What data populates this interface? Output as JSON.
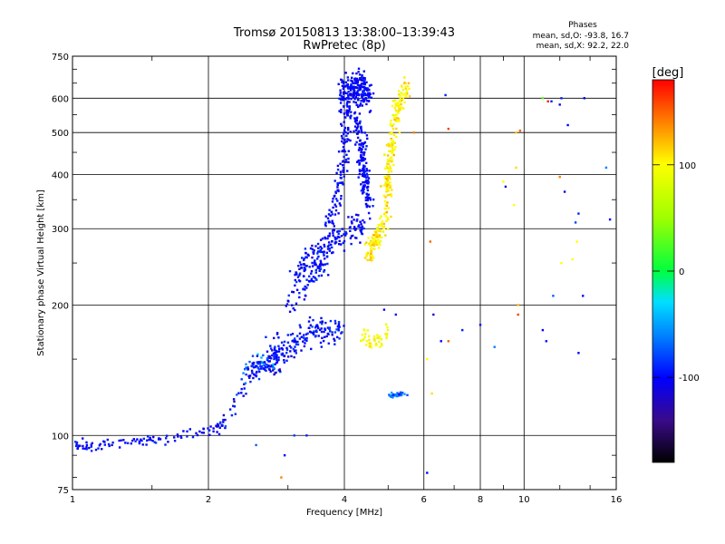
{
  "chart_data": {
    "type": "scatter",
    "title": "Tromsø 20150813 13:38:00–13:39:43",
    "subtitle": "RwPretec (8p)",
    "xlabel": "Frequency [MHz]",
    "ylabel": "Stationary phase Virtual Height [km]",
    "x_scale": "log",
    "y_scale": "log",
    "xlim": [
      1,
      16
    ],
    "ylim": [
      75,
      750
    ],
    "x_ticks": [
      1,
      2,
      4,
      6,
      8,
      10,
      16
    ],
    "y_ticks": [
      75,
      100,
      200,
      300,
      400,
      500,
      600,
      750
    ],
    "x_ticklabels": [
      "1",
      "2",
      "4",
      "6",
      "8",
      "10",
      "16"
    ],
    "y_ticklabels": [
      "75",
      "100",
      "200",
      "300",
      "400",
      "500",
      "600",
      "750"
    ],
    "grid": true,
    "stats": {
      "title": "Phases",
      "line_o": "mean, sd,O: -93.8, 16.7",
      "line_x": "mean, sd,X:  92.2, 22.0"
    },
    "colorbar": {
      "label": "[deg]",
      "range": [
        -180,
        180
      ],
      "ticks": [
        100,
        0,
        -100
      ],
      "ticklabels": [
        "100",
        "0",
        "-100"
      ]
    },
    "colors": {
      "phase_-180": "#000000",
      "phase_-140": "#3a0a8a",
      "phase_-100": "#0000ff",
      "phase_-60": "#00c8ff",
      "phase_0": "#00ff40",
      "phase_100": "#ffff00",
      "phase_140": "#ff8000",
      "phase_180": "#ff0000"
    },
    "clusters": [
      {
        "name": "o_lowE",
        "phase": -100,
        "spread": 12,
        "n": 110,
        "path": [
          [
            1.0,
            95
          ],
          [
            1.1,
            94
          ],
          [
            1.2,
            95
          ],
          [
            1.35,
            97
          ],
          [
            1.5,
            98
          ],
          [
            1.7,
            99
          ],
          [
            1.9,
            102
          ],
          [
            2.1,
            104
          ],
          [
            2.2,
            108
          ]
        ],
        "hsd": 0.02
      },
      {
        "name": "o_rise1",
        "phase": -95,
        "spread": 15,
        "n": 90,
        "path": [
          [
            2.15,
            106
          ],
          [
            2.3,
            120
          ],
          [
            2.45,
            135
          ],
          [
            2.6,
            145
          ],
          [
            2.75,
            150
          ],
          [
            2.9,
            152
          ]
        ],
        "hsd": 0.04
      },
      {
        "name": "o_F1",
        "phase": -95,
        "spread": 15,
        "n": 160,
        "path": [
          [
            2.7,
            150
          ],
          [
            3.0,
            160
          ],
          [
            3.3,
            170
          ],
          [
            3.6,
            175
          ],
          [
            3.95,
            180
          ]
        ],
        "hsd": 0.06
      },
      {
        "name": "o_F1upper",
        "phase": -98,
        "spread": 12,
        "n": 70,
        "path": [
          [
            3.0,
            200
          ],
          [
            3.3,
            220
          ],
          [
            3.5,
            240
          ],
          [
            3.7,
            255
          ]
        ],
        "hsd": 0.04
      },
      {
        "name": "o_F2lower",
        "phase": -98,
        "spread": 12,
        "n": 160,
        "path": [
          [
            3.1,
            230
          ],
          [
            3.3,
            255
          ],
          [
            3.6,
            270
          ],
          [
            3.9,
            285
          ],
          [
            4.2,
            300
          ],
          [
            4.4,
            300
          ]
        ],
        "hsd": 0.05
      },
      {
        "name": "o_F2spread",
        "phase": -100,
        "spread": 10,
        "n": 130,
        "path": [
          [
            3.7,
            300
          ],
          [
            3.85,
            350
          ],
          [
            3.95,
            400
          ],
          [
            4.0,
            460
          ],
          [
            4.05,
            520
          ],
          [
            4.1,
            580
          ]
        ],
        "hsd": 0.05
      },
      {
        "name": "o_F2top",
        "phase": -100,
        "spread": 10,
        "n": 230,
        "path": [
          [
            3.95,
            600
          ],
          [
            4.1,
            630
          ],
          [
            4.25,
            640
          ],
          [
            4.4,
            630
          ],
          [
            4.55,
            620
          ]
        ],
        "hsd": 0.06
      },
      {
        "name": "o_F2column",
        "phase": -100,
        "spread": 10,
        "n": 170,
        "path": [
          [
            4.25,
            560
          ],
          [
            4.35,
            480
          ],
          [
            4.4,
            420
          ],
          [
            4.45,
            380
          ],
          [
            4.55,
            340
          ]
        ],
        "hsd": 0.05
      },
      {
        "name": "o_scatter_mid",
        "phase": -80,
        "spread": 40,
        "n": 40,
        "path": [
          [
            2.4,
            140
          ],
          [
            2.6,
            150
          ],
          [
            2.9,
            140
          ]
        ],
        "hsd": 0.04
      },
      {
        "name": "x_F2",
        "phase": 105,
        "spread": 15,
        "n": 280,
        "path": [
          [
            4.5,
            260
          ],
          [
            4.7,
            280
          ],
          [
            4.9,
            310
          ],
          [
            5.0,
            380
          ],
          [
            5.05,
            450
          ],
          [
            5.15,
            520
          ],
          [
            5.3,
            580
          ],
          [
            5.5,
            640
          ]
        ],
        "hsd": 0.04
      },
      {
        "name": "x_F1",
        "phase": 100,
        "spread": 12,
        "n": 45,
        "path": [
          [
            4.4,
            170
          ],
          [
            4.6,
            165
          ],
          [
            4.8,
            165
          ],
          [
            5.0,
            175
          ]
        ],
        "hsd": 0.03
      },
      {
        "name": "o_blob125",
        "phase": -70,
        "spread": 25,
        "n": 28,
        "path": [
          [
            5.0,
            124
          ],
          [
            5.2,
            124
          ],
          [
            5.4,
            124
          ]
        ],
        "hsd": 0.01
      }
    ],
    "sparse_points": [
      [
        4.9,
        195,
        -100
      ],
      [
        5.2,
        190,
        -95
      ],
      [
        6.1,
        150,
        100
      ],
      [
        6.25,
        125,
        110
      ],
      [
        6.3,
        190,
        -120
      ],
      [
        6.55,
        165,
        -100
      ],
      [
        6.8,
        165,
        150
      ],
      [
        7.3,
        175,
        -90
      ],
      [
        8.0,
        180,
        -95
      ],
      [
        8.6,
        160,
        -60
      ],
      [
        9.0,
        385,
        100
      ],
      [
        9.1,
        375,
        -110
      ],
      [
        9.5,
        340,
        100
      ],
      [
        9.6,
        415,
        110
      ],
      [
        9.7,
        200,
        120
      ],
      [
        9.7,
        190,
        160
      ],
      [
        9.8,
        505,
        150
      ],
      [
        11.0,
        175,
        -100
      ],
      [
        11.2,
        165,
        -95
      ],
      [
        11.6,
        210,
        -70
      ],
      [
        12.0,
        395,
        140
      ],
      [
        12.1,
        600,
        -90
      ],
      [
        12.1,
        250,
        100
      ],
      [
        12.5,
        520,
        -100
      ],
      [
        12.8,
        255,
        100
      ],
      [
        13.0,
        310,
        -80
      ],
      [
        13.1,
        280,
        100
      ],
      [
        13.2,
        155,
        -100
      ],
      [
        13.5,
        210,
        -100
      ],
      [
        11.0,
        600,
        30
      ],
      [
        6.7,
        610,
        -90
      ],
      [
        6.8,
        510,
        160
      ],
      [
        9.6,
        500,
        120
      ],
      [
        11.3,
        590,
        170
      ],
      [
        12.0,
        580,
        -110
      ],
      [
        15.5,
        315,
        -100
      ],
      [
        15.2,
        415,
        -60
      ],
      [
        13.2,
        325,
        -90
      ],
      [
        2.55,
        95,
        -70
      ],
      [
        2.9,
        80,
        140
      ],
      [
        2.95,
        90,
        -100
      ],
      [
        3.1,
        100,
        -80
      ],
      [
        6.1,
        82,
        -100
      ],
      [
        5.3,
        500,
        100
      ],
      [
        5.7,
        500,
        140
      ],
      [
        6.2,
        280,
        150
      ],
      [
        3.3,
        100,
        -90
      ],
      [
        12.3,
        365,
        -110
      ],
      [
        13.6,
        600,
        -100
      ],
      [
        11.5,
        590,
        -90
      ]
    ]
  }
}
